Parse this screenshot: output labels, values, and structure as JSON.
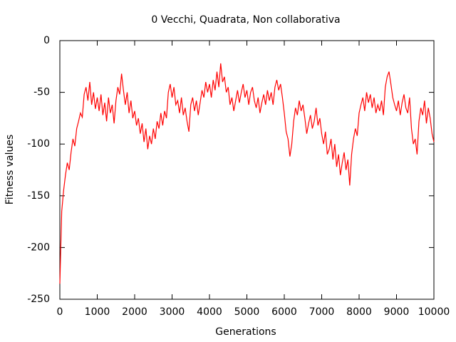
{
  "chart_data": {
    "type": "line",
    "title": "0 Vecchi, Quadrata, Non collaborativa",
    "x_label": "Generations",
    "y_label": "Fitness values",
    "xlim": [
      0,
      10000
    ],
    "xticks": [
      0,
      1000,
      2000,
      3000,
      4000,
      5000,
      6000,
      7000,
      8000,
      9000,
      10000
    ],
    "ylim": [
      -250,
      0
    ],
    "yticks": [
      -250,
      -200,
      -150,
      -100,
      -50,
      0
    ],
    "x": [
      0,
      50,
      100,
      150,
      200,
      250,
      300,
      350,
      400,
      450,
      500,
      550,
      600,
      650,
      700,
      750,
      800,
      850,
      900,
      950,
      1000,
      1050,
      1100,
      1150,
      1200,
      1250,
      1300,
      1350,
      1400,
      1450,
      1500,
      1550,
      1600,
      1650,
      1700,
      1750,
      1800,
      1850,
      1900,
      1950,
      2000,
      2050,
      2100,
      2150,
      2200,
      2250,
      2300,
      2350,
      2400,
      2450,
      2500,
      2550,
      2600,
      2650,
      2700,
      2750,
      2800,
      2850,
      2900,
      2950,
      3000,
      3050,
      3100,
      3150,
      3200,
      3250,
      3300,
      3350,
      3400,
      3450,
      3500,
      3550,
      3600,
      3650,
      3700,
      3750,
      3800,
      3850,
      3900,
      3950,
      4000,
      4050,
      4100,
      4150,
      4200,
      4250,
      4300,
      4350,
      4400,
      4450,
      4500,
      4550,
      4600,
      4650,
      4700,
      4750,
      4800,
      4850,
      4900,
      4950,
      5000,
      5050,
      5100,
      5150,
      5200,
      5250,
      5300,
      5350,
      5400,
      5450,
      5500,
      5550,
      5600,
      5650,
      5700,
      5750,
      5800,
      5850,
      5900,
      5950,
      6000,
      6050,
      6100,
      6150,
      6200,
      6250,
      6300,
      6350,
      6400,
      6450,
      6500,
      6550,
      6600,
      6650,
      6700,
      6750,
      6800,
      6850,
      6900,
      6950,
      7000,
      7050,
      7100,
      7150,
      7200,
      7250,
      7300,
      7350,
      7400,
      7450,
      7500,
      7550,
      7600,
      7650,
      7700,
      7750,
      7800,
      7850,
      7900,
      7950,
      8000,
      8050,
      8100,
      8150,
      8200,
      8250,
      8300,
      8350,
      8400,
      8450,
      8500,
      8550,
      8600,
      8650,
      8700,
      8750,
      8800,
      8850,
      8900,
      8950,
      9000,
      9050,
      9100,
      9150,
      9200,
      9250,
      9300,
      9350,
      9400,
      9450,
      9500,
      9550,
      9600,
      9650,
      9700,
      9750,
      9800,
      9850,
      9900,
      9950,
      10000
    ],
    "series": [
      {
        "color": "#ff0000",
        "values": [
          -235,
          -165,
          -145,
          -130,
          -118,
          -125,
          -108,
          -95,
          -102,
          -85,
          -78,
          -70,
          -74,
          -52,
          -45,
          -58,
          -40,
          -62,
          -50,
          -66,
          -55,
          -68,
          -52,
          -72,
          -60,
          -78,
          -55,
          -70,
          -62,
          -80,
          -58,
          -45,
          -52,
          -32,
          -48,
          -62,
          -50,
          -70,
          -58,
          -75,
          -68,
          -82,
          -75,
          -90,
          -80,
          -98,
          -85,
          -105,
          -92,
          -100,
          -85,
          -95,
          -78,
          -85,
          -70,
          -82,
          -68,
          -75,
          -50,
          -42,
          -55,
          -45,
          -62,
          -58,
          -70,
          -55,
          -72,
          -65,
          -78,
          -88,
          -62,
          -55,
          -68,
          -58,
          -72,
          -60,
          -48,
          -55,
          -40,
          -50,
          -42,
          -55,
          -38,
          -48,
          -30,
          -45,
          -22,
          -40,
          -35,
          -50,
          -45,
          -62,
          -55,
          -68,
          -58,
          -48,
          -60,
          -50,
          -42,
          -55,
          -48,
          -62,
          -50,
          -45,
          -58,
          -65,
          -55,
          -70,
          -60,
          -52,
          -62,
          -48,
          -58,
          -50,
          -62,
          -45,
          -38,
          -48,
          -42,
          -55,
          -70,
          -88,
          -95,
          -112,
          -100,
          -78,
          -65,
          -72,
          -58,
          -68,
          -62,
          -75,
          -90,
          -80,
          -72,
          -85,
          -78,
          -65,
          -82,
          -75,
          -90,
          -100,
          -88,
          -110,
          -105,
          -95,
          -115,
          -100,
          -122,
          -110,
          -130,
          -118,
          -108,
          -125,
          -115,
          -140,
          -110,
          -95,
          -85,
          -92,
          -70,
          -62,
          -55,
          -68,
          -50,
          -60,
          -52,
          -65,
          -55,
          -70,
          -62,
          -68,
          -58,
          -72,
          -45,
          -35,
          -30,
          -42,
          -55,
          -62,
          -68,
          -58,
          -72,
          -60,
          -52,
          -65,
          -70,
          -55,
          -85,
          -100,
          -95,
          -110,
          -78,
          -65,
          -72,
          -58,
          -80,
          -65,
          -75,
          -90,
          -98
        ]
      }
    ]
  }
}
